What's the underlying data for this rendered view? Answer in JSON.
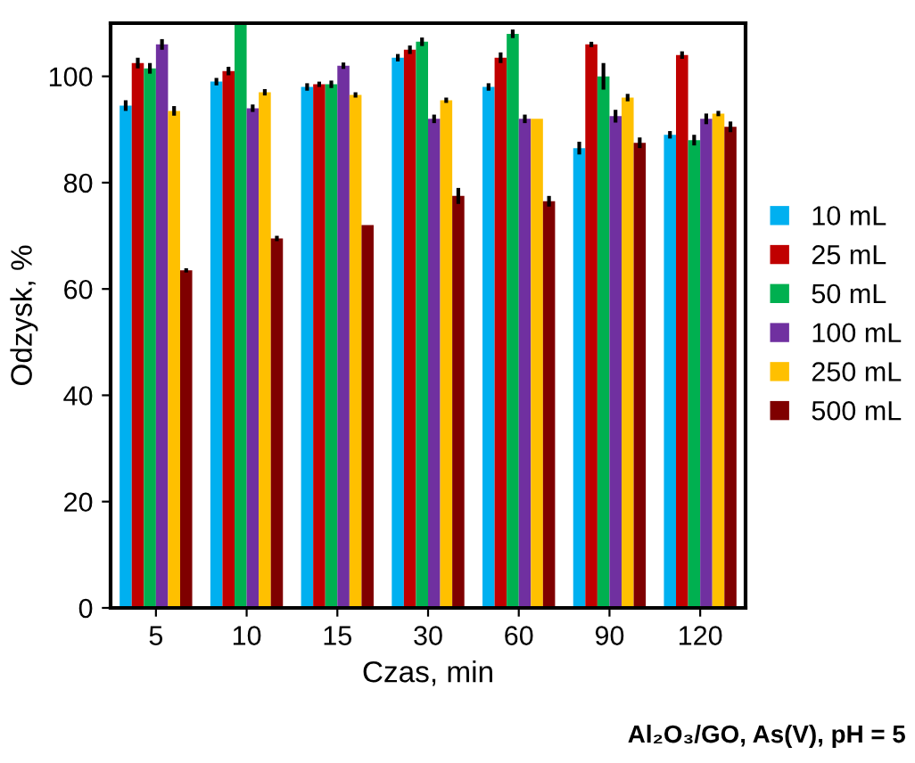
{
  "chart_data": {
    "type": "bar",
    "xlabel": "Czas, min",
    "ylabel": "Odzysk, %",
    "categories": [
      "5",
      "10",
      "15",
      "30",
      "60",
      "90",
      "120"
    ],
    "series": [
      {
        "name": "10 mL",
        "color": "#00b0f0",
        "values": [
          94.5,
          99,
          98,
          103.5,
          98,
          86.5,
          89
        ],
        "errors": [
          1,
          0.7,
          0.7,
          0.7,
          0.7,
          1.2,
          0.7
        ]
      },
      {
        "name": "25 mL",
        "color": "#c00000",
        "values": [
          102.5,
          101,
          98.5,
          105,
          103.5,
          106,
          104
        ],
        "errors": [
          1,
          0.8,
          0.5,
          0.8,
          1,
          0.5,
          0.7
        ]
      },
      {
        "name": "50 mL",
        "color": "#00b050",
        "values": [
          101.5,
          110,
          98.5,
          106.5,
          108,
          100,
          88
        ],
        "errors": [
          1,
          null,
          0.7,
          0.8,
          0.8,
          2.5,
          1
        ]
      },
      {
        "name": "100 mL",
        "color": "#7030a0",
        "values": [
          106,
          94,
          102,
          92,
          92,
          92.5,
          92
        ],
        "errors": [
          1,
          0.7,
          0.6,
          0.8,
          0.8,
          1.2,
          1
        ]
      },
      {
        "name": "250 mL",
        "color": "#ffc000",
        "values": [
          93.5,
          97,
          96.5,
          95.5,
          92,
          96,
          93
        ],
        "errors": [
          0.9,
          0.6,
          0.5,
          0.5,
          null,
          0.7,
          0.5
        ]
      },
      {
        "name": "500 mL",
        "color": "#7f0000",
        "values": [
          63.5,
          69.5,
          72,
          77.5,
          76.5,
          87.5,
          90.5
        ],
        "errors": [
          0.4,
          0.5,
          null,
          1.5,
          1,
          1,
          1
        ]
      }
    ],
    "ylim": [
      0,
      110
    ],
    "yticks": [
      0,
      20,
      40,
      60,
      80,
      100
    ],
    "legend": "right",
    "grid": false,
    "annotations": [
      "Al₂O₃/GO, As(V), pH = 5"
    ]
  }
}
